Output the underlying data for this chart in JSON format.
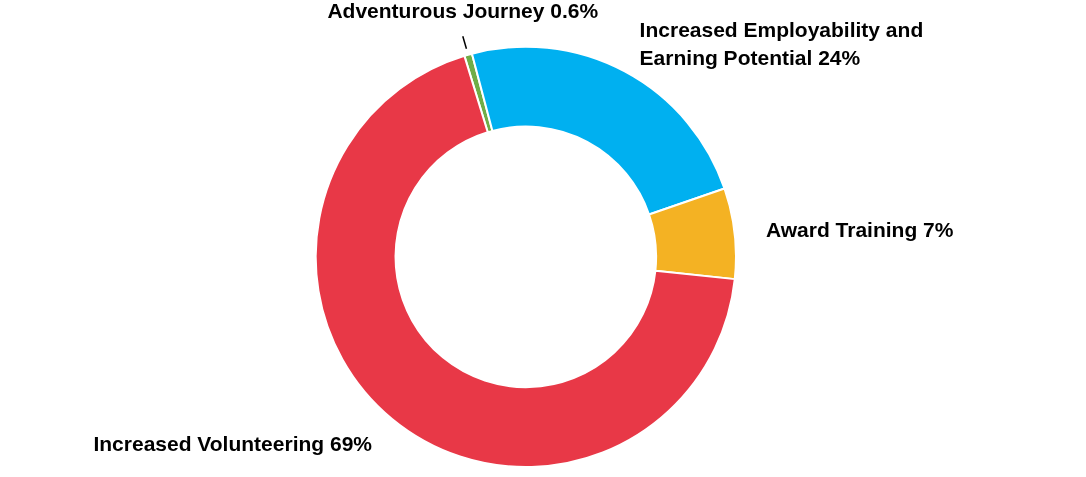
{
  "chart_data": {
    "type": "donut",
    "categories": [
      "Adventurous Journey",
      "Increased Employability and Earning Potential",
      "Award Training",
      "Increased Volunteering"
    ],
    "values": [
      0.6,
      24,
      7,
      69
    ],
    "colors": [
      "#70ad47",
      "#00b0f0",
      "#f4b223",
      "#e83847"
    ],
    "value_labels": [
      "0.6%",
      "24%",
      "7%",
      "69%"
    ]
  }
}
